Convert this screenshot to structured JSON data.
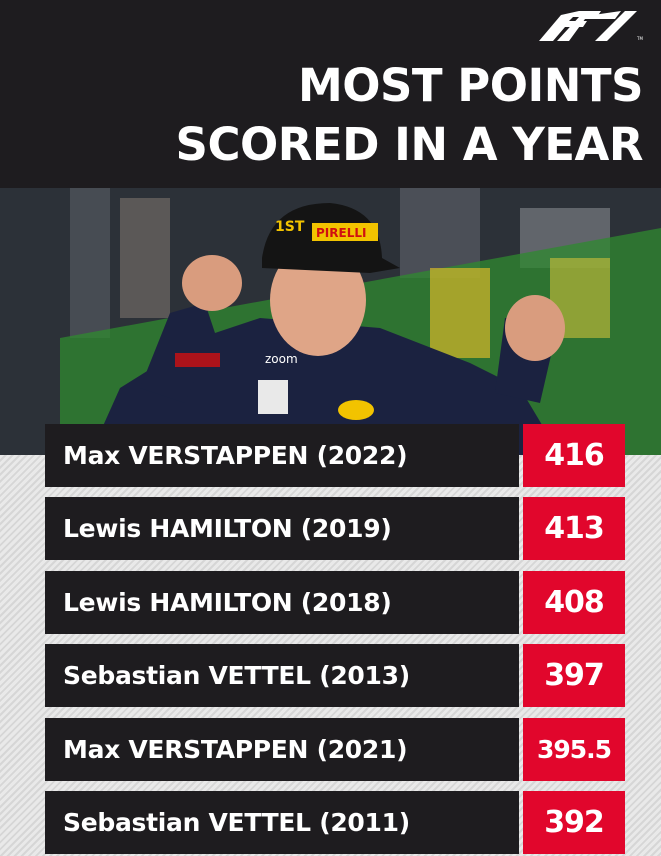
{
  "header": {
    "logo": "F1",
    "title_line1": "MOST POINTS",
    "title_line2": "SCORED IN A YEAR"
  },
  "photo": {
    "description_icon": "driver-celebrating-photo"
  },
  "rows": [
    {
      "name": "Max VERSTAPPEN (2022)",
      "points": "416"
    },
    {
      "name": "Lewis HAMILTON (2019)",
      "points": "413"
    },
    {
      "name": "Lewis HAMILTON (2018)",
      "points": "408"
    },
    {
      "name": "Sebastian VETTEL (2013)",
      "points": "397"
    },
    {
      "name": "Max VERSTAPPEN (2021)",
      "points": "395.5"
    },
    {
      "name": "Sebastian VETTEL (2011)",
      "points": "392"
    }
  ],
  "colors": {
    "background_dark": "#1e1c1f",
    "accent_red": "#e1062c",
    "text": "#ffffff"
  }
}
